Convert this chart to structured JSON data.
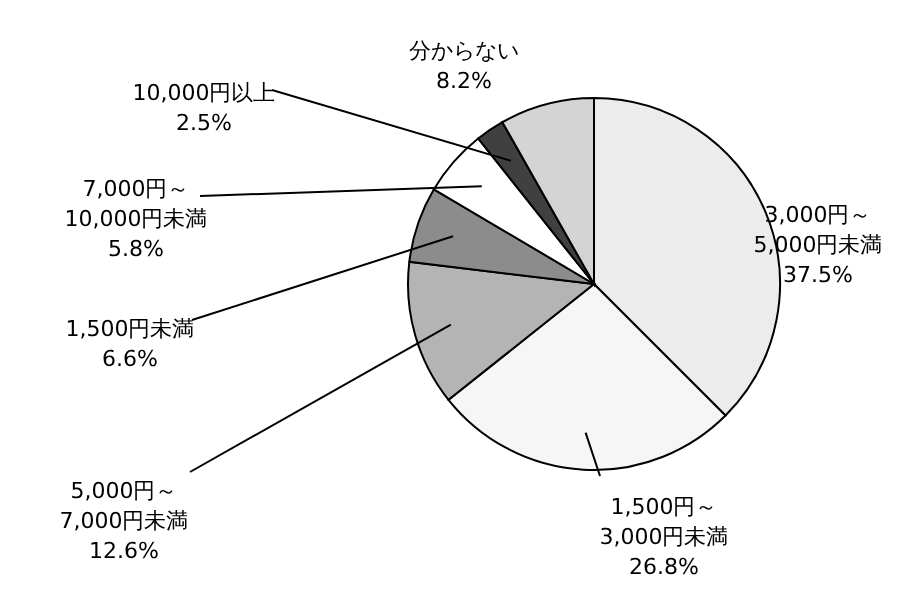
{
  "chart_data": {
    "type": "pie",
    "categories": [
      "3,000円～5,000円未満",
      "1,500円～3,000円未満",
      "5,000円～7,000円未満",
      "1,500円未満",
      "7,000円～10,000円未満",
      "10,000円以上",
      "分からない"
    ],
    "values": [
      37.5,
      26.8,
      12.6,
      6.6,
      5.8,
      2.5,
      8.2
    ],
    "value_labels": [
      "37.5%",
      "26.8%",
      "12.6%",
      "6.6%",
      "5.8%",
      "2.5%",
      "8.2%"
    ],
    "colors": [
      "#ececec",
      "#f6f6f6",
      "#b4b4b4",
      "#8c8c8c",
      "#ffffff",
      "#404040",
      "#d4d4d4"
    ]
  }
}
